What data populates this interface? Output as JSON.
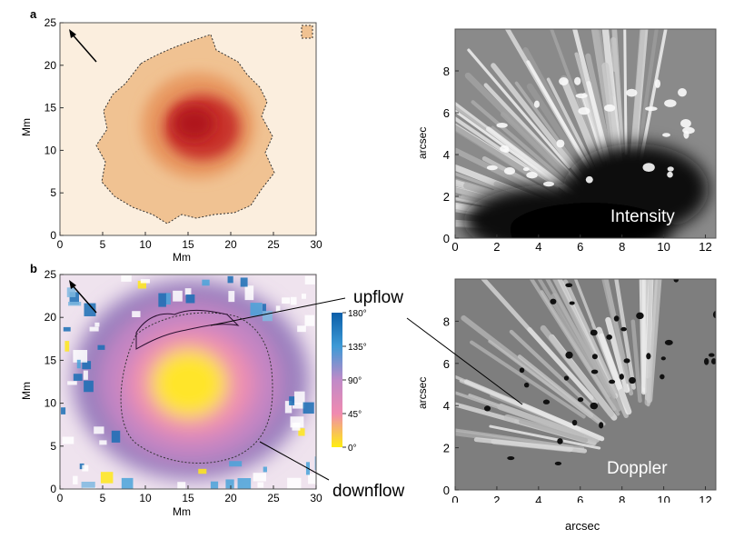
{
  "panels": {
    "a": {
      "letter": "a",
      "xlabel": "Mm",
      "ylabel": "Mm",
      "xticks": [
        "0",
        "5",
        "10",
        "15",
        "20",
        "25",
        "30"
      ],
      "yticks": [
        "0",
        "5",
        "10",
        "15",
        "20",
        "25"
      ]
    },
    "b": {
      "letter": "b",
      "xlabel": "Mm",
      "ylabel": "Mm",
      "xticks": [
        "0",
        "5",
        "10",
        "15",
        "20",
        "25",
        "30"
      ],
      "yticks": [
        "0",
        "5",
        "10",
        "15",
        "20",
        "25"
      ],
      "colorbar_ticks": [
        "180°",
        "135°",
        "90°",
        "45°",
        "0°"
      ],
      "colors": {
        "high": "#1a6fb5",
        "mid_high": "#4aa3d9",
        "mid": "#c58ac4",
        "mid_low": "#ee8ab0",
        "low": "#ffe81a"
      }
    },
    "intensity": {
      "ylabel": "arcsec",
      "xticks": [
        "0",
        "2",
        "4",
        "6",
        "8",
        "10",
        "12"
      ],
      "yticks": [
        "0",
        "2",
        "4",
        "6",
        "8"
      ],
      "label": "Intensity"
    },
    "doppler": {
      "ylabel": "arcsec",
      "xlabel": "arcsec",
      "xticks": [
        "0",
        "2",
        "4",
        "6",
        "8",
        "10",
        "12"
      ],
      "yticks": [
        "0",
        "2",
        "4",
        "6",
        "8"
      ],
      "label": "Doppler"
    }
  },
  "annotations": {
    "upflow": "upflow",
    "downflow": "downflow"
  }
}
